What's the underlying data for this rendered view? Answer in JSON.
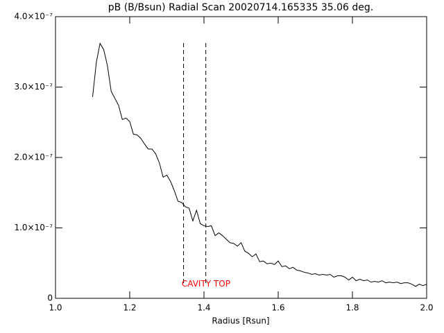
{
  "chart_data": {
    "type": "line",
    "title": "pB (B/Bsun) Radial Scan 20020714.165335 35.06 deg.",
    "xlabel": "Radius [Rsun]",
    "xlim": [
      1.0,
      2.0
    ],
    "ylim": [
      0,
      4e-07
    ],
    "xticks": [
      {
        "value": 1.0,
        "label": "1.0"
      },
      {
        "value": 1.2,
        "label": "1.2"
      },
      {
        "value": 1.4,
        "label": "1.4"
      },
      {
        "value": 1.6,
        "label": "1.6"
      },
      {
        "value": 1.8,
        "label": "1.8"
      },
      {
        "value": 2.0,
        "label": "2.0"
      }
    ],
    "yticks": [
      0,
      {
        "value": 1e-07,
        "label": "1.0×10⁻⁷"
      },
      {
        "value": 2e-07,
        "label": "2.0×10⁻⁷"
      },
      {
        "value": 3e-07,
        "label": "3.0×10⁻⁷"
      },
      {
        "value": 4e-07,
        "label": "4.0×10⁻⁷"
      }
    ],
    "x": [
      1.1,
      1.11,
      1.12,
      1.13,
      1.14,
      1.15,
      1.16,
      1.17,
      1.18,
      1.19,
      1.2,
      1.21,
      1.22,
      1.23,
      1.24,
      1.25,
      1.26,
      1.27,
      1.28,
      1.29,
      1.3,
      1.31,
      1.32,
      1.33,
      1.34,
      1.35,
      1.36,
      1.37,
      1.38,
      1.39,
      1.4,
      1.41,
      1.42,
      1.43,
      1.44,
      1.45,
      1.46,
      1.47,
      1.48,
      1.49,
      1.5,
      1.51,
      1.52,
      1.53,
      1.54,
      1.55,
      1.56,
      1.57,
      1.58,
      1.59,
      1.6,
      1.61,
      1.62,
      1.63,
      1.64,
      1.65,
      1.66,
      1.67,
      1.68,
      1.69,
      1.7,
      1.71,
      1.72,
      1.73,
      1.74,
      1.75,
      1.76,
      1.77,
      1.78,
      1.79,
      1.8,
      1.81,
      1.82,
      1.83,
      1.84,
      1.85,
      1.86,
      1.87,
      1.88,
      1.89,
      1.9,
      1.91,
      1.92,
      1.93,
      1.94,
      1.95,
      1.96,
      1.97,
      1.98,
      1.99,
      2.0
    ],
    "series": [
      {
        "color": "#000000",
        "values": [
          2.86e-07,
          3.35e-07,
          3.62e-07,
          3.53e-07,
          3.3e-07,
          2.94e-07,
          2.84e-07,
          2.74e-07,
          2.54e-07,
          2.56e-07,
          2.51e-07,
          2.33e-07,
          2.32e-07,
          2.27e-07,
          2.19e-07,
          2.12e-07,
          2.12e-07,
          2.05e-07,
          1.92e-07,
          1.72e-07,
          1.75e-07,
          1.66e-07,
          1.53e-07,
          1.38e-07,
          1.36e-07,
          1.3e-07,
          1.28e-07,
          1.1e-07,
          1.25e-07,
          1.06e-07,
          1.03e-07,
          1.02e-07,
          1.03e-07,
          8.9e-08,
          9.3e-08,
          8.9e-08,
          8.4e-08,
          7.9e-08,
          7.8e-08,
          7.4e-08,
          7.9e-08,
          6.7e-08,
          6.4e-08,
          5.9e-08,
          6.3e-08,
          5.2e-08,
          5.3e-08,
          4.9e-08,
          5e-08,
          4.8e-08,
          5.3e-08,
          4.5e-08,
          4.6e-08,
          4.2e-08,
          4.4e-08,
          4e-08,
          3.9e-08,
          3.7e-08,
          3.6e-08,
          3.4e-08,
          3.5e-08,
          3.3e-08,
          3.4e-08,
          3.3e-08,
          3.4e-08,
          3e-08,
          3.2e-08,
          3.2e-08,
          3e-08,
          2.6e-08,
          3e-08,
          2.5e-08,
          2.7e-08,
          2.5e-08,
          2.6e-08,
          2.3e-08,
          2.4e-08,
          2.3e-08,
          2.5e-08,
          2.2e-08,
          2.3e-08,
          2.2e-08,
          2.3e-08,
          2.1e-08,
          2.2e-08,
          2.2e-08,
          2e-08,
          1.7e-08,
          2e-08,
          1.8e-08,
          2e-08
        ]
      }
    ],
    "vlines": [
      1.345,
      1.405
    ],
    "annotation": {
      "text": "CAVITY TOP",
      "x": 1.34,
      "y": 2e-08,
      "color": "#ff0000"
    }
  }
}
